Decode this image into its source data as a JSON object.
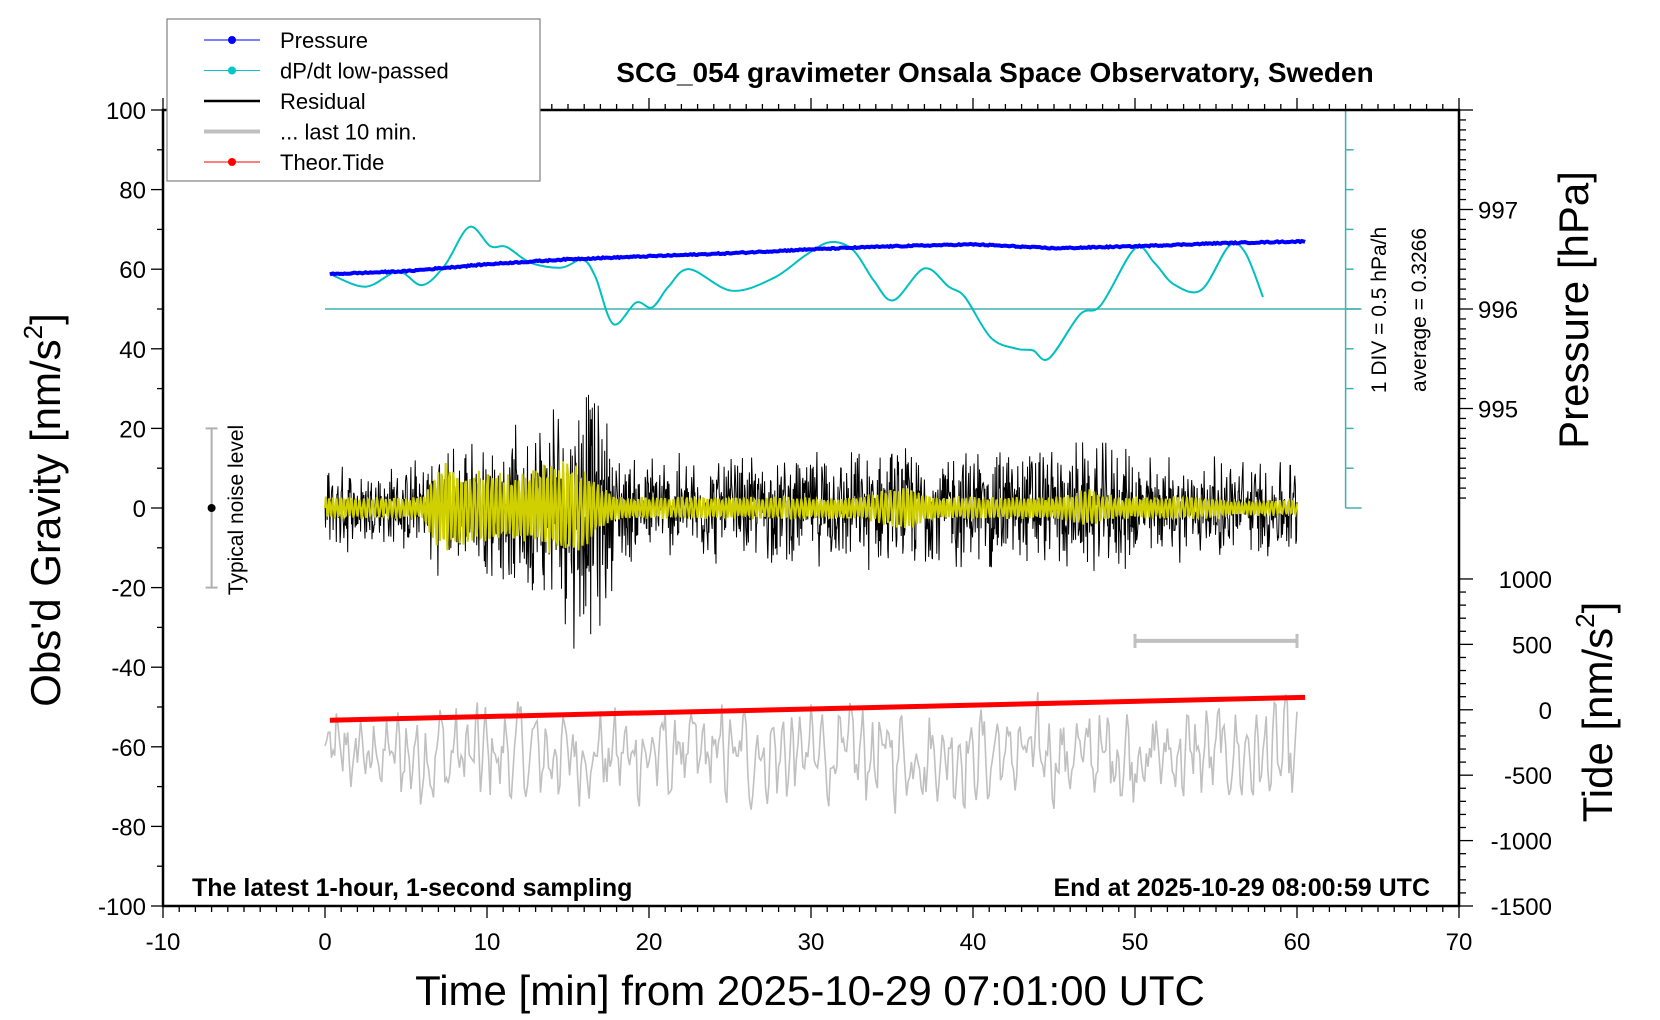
{
  "chart_data": {
    "type": "line",
    "title": "SCG_054 gravimeter Onsala Space Observatory, Sweden",
    "xlabel": "Time [min] from 2025-10-29 07:01:00 UTC",
    "ylabel": "Obs'd Gravity [nm/s",
    "ylabel_sup": "2",
    "ylabel_end": "]",
    "y2label": "Pressure [hPa]",
    "y3label": "Tide [nm/s",
    "y3label_sup": "2",
    "y3label_end": "]",
    "xlim": [
      -10,
      70
    ],
    "ylim": [
      -100,
      100
    ],
    "y2lim": [
      990,
      998
    ],
    "y3lim": [
      -1500,
      4585
    ],
    "x_ticks": [
      "-10",
      "0",
      "10",
      "20",
      "30",
      "40",
      "50",
      "60",
      "70"
    ],
    "y_ticks": [
      "100",
      "80",
      "60",
      "40",
      "20",
      "0",
      "-20",
      "-40",
      "-60",
      "-80",
      "-100"
    ],
    "y2_ticks": [
      "997",
      "996",
      "995"
    ],
    "y3_ticks": [
      "1000",
      "500",
      "0",
      "-500",
      "-1000",
      "-1500"
    ],
    "annotations": {
      "left_bottom": "The latest 1-hour, 1-second sampling",
      "right_bottom": "End at 2025-10-29 08:00:59 UTC",
      "div_scale": "1 DIV = 0.5 hPa/h",
      "average": "average = 0.3266",
      "noise_label": "Typical noise level"
    },
    "legend": {
      "placement": "top-left",
      "items": [
        {
          "label": "Pressure",
          "color": "#0000ff",
          "marker": true
        },
        {
          "label": "dP/dt low-passed",
          "color": "#00c8c8",
          "marker": true
        },
        {
          "label": "Residual",
          "color": "#000000",
          "marker": false
        },
        {
          "label": "... last 10 min.",
          "color": "#c0c0c0",
          "marker": false
        },
        {
          "label": "Theor.Tide",
          "color": "#ff0000",
          "marker": true
        }
      ]
    },
    "colors": {
      "pressure": "#0000ff",
      "dpdt": "#00c0c0",
      "dpdt_axis": "#40b0b0",
      "residual": "#000000",
      "filtered": "#d0d000",
      "last10": "#c0c0c0",
      "tide": "#ff0000"
    },
    "noise_level": {
      "x": -7,
      "range": [
        -20,
        20
      ]
    },
    "last10_bar": {
      "x": [
        50,
        60
      ],
      "y": -33.4
    },
    "dpdt_axis": {
      "x": 63,
      "zero_gravity_equiv": 50,
      "hpa_per_div": 0.5,
      "div_gravity_units": 10
    },
    "pressure": {
      "x": [
        0.3,
        5,
        10,
        15,
        20,
        25,
        30,
        35,
        40,
        45,
        50,
        55,
        60.5
      ],
      "values": [
        996.35,
        996.38,
        996.45,
        996.5,
        996.53,
        996.56,
        996.6,
        996.63,
        996.65,
        996.61,
        996.63,
        996.66,
        996.68
      ]
    },
    "dpdt": {
      "unit": "hPa/h",
      "x": [
        0.3,
        2.5,
        4.5,
        6,
        7.4,
        8.9,
        10.2,
        11.2,
        12.7,
        14.6,
        15.9,
        16.7,
        17.8,
        19.2,
        20.2,
        21.2,
        22.5,
        25.1,
        27.7,
        29.7,
        31.2,
        32.6,
        33.9,
        35.1,
        37,
        38.5,
        39.5,
        41.1,
        42.7,
        43.7,
        44.7,
        46.6,
        47.9,
        50,
        51.2,
        52.4,
        54.1,
        55.8,
        56.8,
        57.9
      ],
      "values": [
        0.44,
        0.28,
        0.47,
        0.3,
        0.55,
        1.03,
        0.79,
        0.78,
        0.58,
        0.52,
        0.62,
        0.4,
        -0.19,
        0.08,
        0.02,
        0.28,
        0.5,
        0.23,
        0.39,
        0.68,
        0.84,
        0.74,
        0.35,
        0.11,
        0.51,
        0.28,
        0.15,
        -0.36,
        -0.5,
        -0.52,
        -0.62,
        -0.07,
        0.05,
        0.76,
        0.58,
        0.31,
        0.24,
        0.79,
        0.71,
        0.15
      ]
    },
    "residual_envelope": {
      "x_step_min": 1,
      "x_start": 0,
      "amplitude": [
        12,
        12,
        12,
        12,
        12,
        12,
        14,
        18,
        18,
        18,
        20,
        20,
        22,
        26,
        30,
        36,
        40,
        32,
        18,
        15,
        15,
        15,
        15,
        15,
        15,
        15,
        15,
        15,
        15,
        15,
        16,
        16,
        16,
        16,
        17,
        17,
        17,
        17,
        17,
        17,
        18,
        18,
        18,
        18,
        18,
        18,
        18,
        18,
        18,
        18,
        16,
        15,
        15,
        14,
        14,
        14,
        14,
        14,
        14,
        14,
        14
      ],
      "filtered_amplitude": [
        3,
        3,
        3,
        3,
        3,
        3,
        3,
        12,
        11,
        10,
        10,
        9,
        9,
        11,
        12,
        12,
        11,
        6,
        3,
        3,
        3,
        3,
        3,
        3,
        3,
        3,
        3,
        3,
        3,
        3,
        3,
        3,
        3,
        3,
        4,
        5,
        6,
        4,
        3,
        3,
        3,
        3,
        3,
        3,
        3,
        3,
        4,
        5,
        4,
        3,
        3,
        3,
        3,
        3,
        3,
        3,
        2,
        2,
        2,
        2,
        2
      ]
    },
    "last10": {
      "center": -62,
      "amplitude": 10,
      "x": [
        0,
        60
      ]
    },
    "tide": {
      "x": [
        0.3,
        60.5
      ],
      "values": [
        -80,
        95
      ]
    }
  }
}
